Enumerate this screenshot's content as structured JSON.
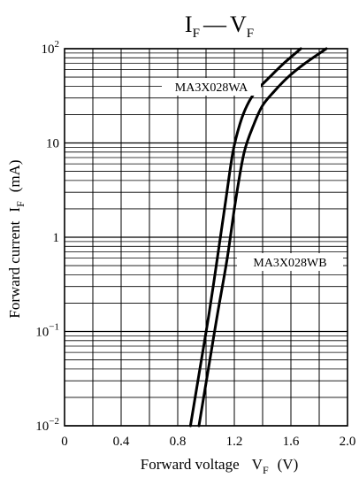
{
  "chart_data": {
    "type": "line",
    "title": {
      "main": "I",
      "sub1": "F",
      "dash": "—",
      "main2": "V",
      "sub2": "F"
    },
    "xlabel": {
      "text": "Forward voltage",
      "sym": "V",
      "sub": "F",
      "unit": "(V)"
    },
    "ylabel": {
      "text": "Forward current",
      "sym": "I",
      "sub": "F",
      "unit": "(mA)"
    },
    "x_axis": {
      "range": [
        0,
        2.0
      ],
      "ticks": [
        0,
        0.4,
        0.8,
        1.2,
        1.6,
        2.0
      ],
      "tick_labels": [
        "0",
        "0.4",
        "0.8",
        "1.2",
        "1.6",
        "2.0"
      ],
      "minor_step": 0.2
    },
    "y_axis": {
      "scale": "log",
      "range": [
        0.01,
        100
      ],
      "decades": [
        {
          "value": 100,
          "base": "10",
          "exp": "2"
        },
        {
          "value": 10,
          "base": "10",
          "exp": ""
        },
        {
          "value": 1,
          "base": "1",
          "exp": ""
        },
        {
          "value": 0.1,
          "base": "10",
          "exp": "−1"
        },
        {
          "value": 0.01,
          "base": "10",
          "exp": "−2"
        }
      ]
    },
    "grid": true,
    "series": [
      {
        "name": "MA3X028WA",
        "x": [
          0.89,
          0.95,
          1.02,
          1.08,
          1.14,
          1.19,
          1.24,
          1.29,
          1.35,
          1.45,
          1.55,
          1.67
        ],
        "y": [
          0.01,
          0.035,
          0.15,
          0.6,
          2.5,
          8,
          16,
          25,
          35,
          50,
          70,
          100
        ]
      },
      {
        "name": "MA3X028WB",
        "x": [
          0.95,
          1.01,
          1.08,
          1.15,
          1.21,
          1.27,
          1.34,
          1.4,
          1.48,
          1.58,
          1.7,
          1.85
        ],
        "y": [
          0.01,
          0.035,
          0.15,
          0.6,
          2.5,
          8,
          16,
          25,
          35,
          50,
          70,
          100
        ]
      }
    ]
  }
}
